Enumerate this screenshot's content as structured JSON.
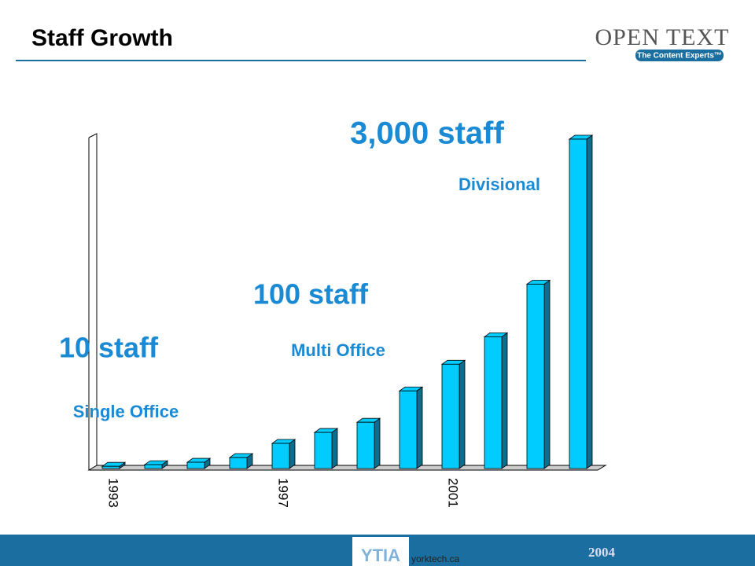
{
  "chart_data": {
    "type": "bar3d",
    "title": "Staff Growth",
    "categories": [
      "1993",
      null,
      null,
      null,
      "1997",
      null,
      null,
      null,
      "2001",
      null,
      null,
      null
    ],
    "values": [
      20,
      35,
      57,
      100,
      229,
      329,
      421,
      707,
      950,
      1200,
      1679,
      3000
    ],
    "color": "#00ccff",
    "ylim": [
      0,
      3000
    ],
    "annotations": [
      "3,000 staff",
      "Divisional",
      "100 staff",
      "Multi Office",
      "10 staff",
      "Single Office"
    ]
  },
  "slide": {
    "logo": "OPEN TEXT",
    "logo_tagline": "The Content Experts™",
    "footer_badge": "YTIA",
    "footer_site": "yorktech.ca",
    "footer_year": "2004"
  }
}
